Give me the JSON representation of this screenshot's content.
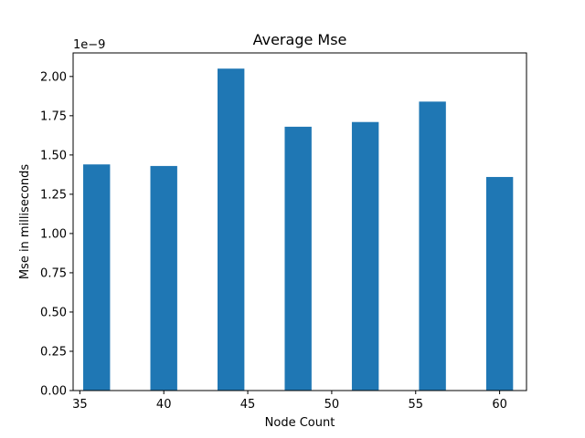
{
  "chart_data": {
    "type": "bar",
    "title": "Average Mse",
    "xlabel": "Node Count",
    "ylabel": "Mse in milliseconds",
    "offset_text": "1e−9",
    "x": [
      36,
      40,
      44,
      48,
      52,
      56,
      60
    ],
    "values": [
      1.44,
      1.43,
      2.05,
      1.68,
      1.71,
      1.84,
      1.36
    ],
    "xlim": [
      34.6,
      61.6
    ],
    "ylim": [
      0,
      2.15
    ],
    "xticks": [
      35,
      40,
      45,
      50,
      55,
      60
    ],
    "yticks": [
      0.0,
      0.25,
      0.5,
      0.75,
      1.0,
      1.25,
      1.5,
      1.75,
      2.0
    ],
    "xtick_labels": [
      "35",
      "40",
      "45",
      "50",
      "55",
      "60"
    ],
    "ytick_labels": [
      "0.00",
      "0.25",
      "0.50",
      "0.75",
      "1.00",
      "1.25",
      "1.50",
      "1.75",
      "2.00"
    ],
    "bar_color": "#1f77b4",
    "grid": false,
    "legend": false
  }
}
